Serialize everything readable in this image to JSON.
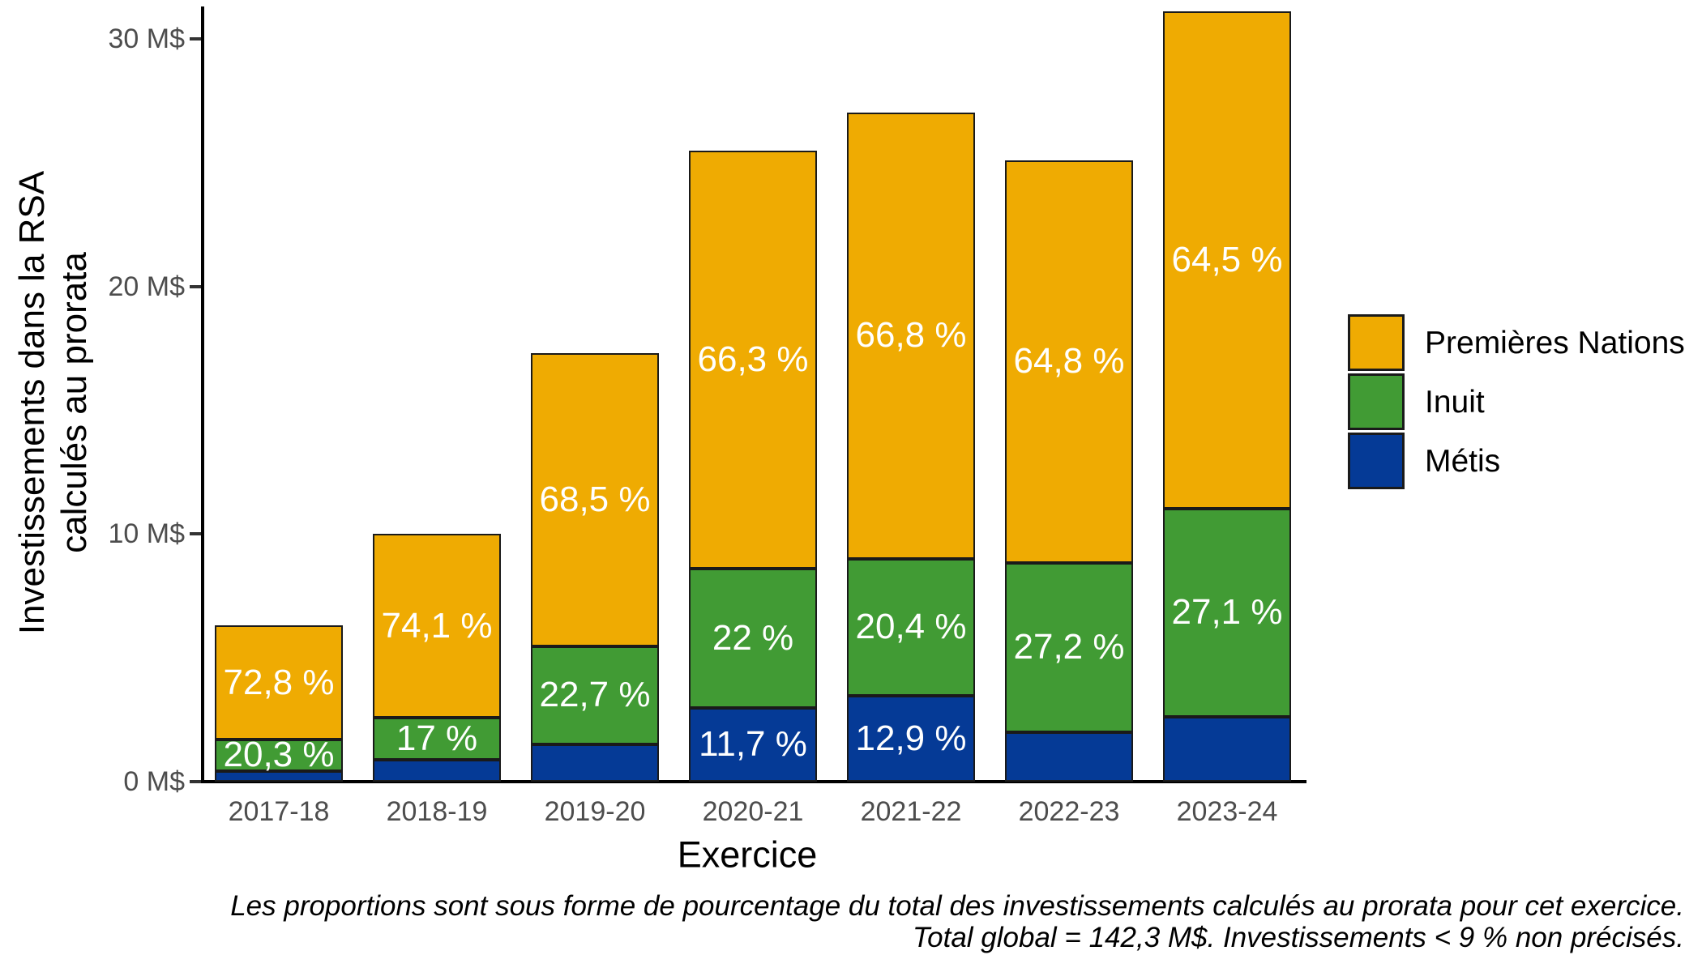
{
  "chart_data": {
    "type": "bar",
    "stacked": true,
    "title": "",
    "xlabel": "Exercice",
    "ylabel_lines": [
      "Investissements dans la RSA",
      "calculés au prorata"
    ],
    "unit": "M$",
    "categories": [
      "2017-18",
      "2018-19",
      "2019-20",
      "2020-21",
      "2021-22",
      "2022-23",
      "2023-24"
    ],
    "series": [
      {
        "name": "Métis",
        "color": "#053A96",
        "values": [
          0.43,
          0.89,
          1.52,
          2.98,
          3.48,
          2.01,
          2.61
        ],
        "percent_labels": [
          "",
          "",
          "",
          "11,7 %",
          "12,9 %",
          "",
          ""
        ]
      },
      {
        "name": "Inuit",
        "color": "#419B34",
        "values": [
          1.28,
          1.7,
          3.93,
          5.61,
          5.51,
          6.83,
          8.43
        ],
        "percent_labels": [
          "20,3 %",
          "17 %",
          "22,7 %",
          "22 %",
          "20,4 %",
          "27,2 %",
          "27,1 %"
        ]
      },
      {
        "name": "Premières Nations",
        "color": "#EFAB02",
        "values": [
          4.59,
          7.41,
          11.85,
          16.91,
          18.04,
          16.26,
          20.06
        ],
        "percent_labels": [
          "72,8 %",
          "74,1 %",
          "68,5 %",
          "66,3 %",
          "66,8 %",
          "64,8 %",
          "64,5 %"
        ]
      }
    ],
    "bar_totals_M$": [
      6.3,
      10.0,
      17.3,
      25.5,
      27.0,
      25.1,
      31.1
    ],
    "y_ticks": [
      {
        "value": 0,
        "label": "0 M$"
      },
      {
        "value": 10,
        "label": "10 M$"
      },
      {
        "value": 20,
        "label": "20 M$"
      },
      {
        "value": 30,
        "label": "30 M$"
      }
    ],
    "ylim": [
      0,
      31.4
    ],
    "grid": false,
    "legend_position": "right",
    "legend_order_top_to_bottom": [
      "Premières Nations",
      "Inuit",
      "Métis"
    ],
    "bar_label_color": "#FFFFFF",
    "caption_lines": [
      "Les proportions sont sous forme de pourcentage du total des investissements calculés au prorata pour cet exercice.",
      "Total global = 142,3 M$. Investissements < 9 % non précisés."
    ]
  },
  "colors": {
    "background": "#FFFFFF",
    "axis_line": "#000000",
    "axis_text_gray": "#4D4D4D",
    "bar_outline": "#1A1A1A",
    "text": "#000000"
  }
}
